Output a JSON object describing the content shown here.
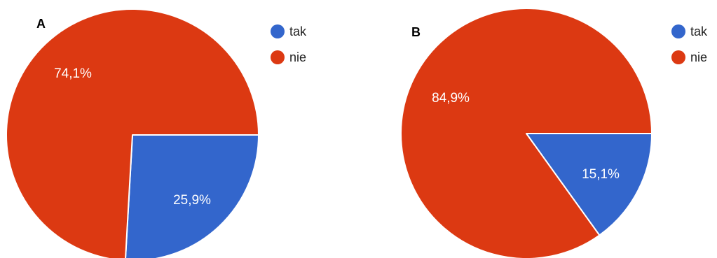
{
  "chart_data": [
    {
      "type": "pie",
      "panel": "A",
      "slices": [
        {
          "label": "tak",
          "value": 25.9,
          "value_label": "25,9%",
          "color": "#3366cc"
        },
        {
          "label": "nie",
          "value": 74.1,
          "value_label": "74,1%",
          "color": "#dc3912"
        }
      ],
      "legend": [
        {
          "label": "tak",
          "color": "#3366cc"
        },
        {
          "label": "nie",
          "color": "#dc3912"
        }
      ],
      "legend_position": "right",
      "start_angle": "3 o'clock",
      "direction": "clockwise"
    },
    {
      "type": "pie",
      "panel": "B",
      "slices": [
        {
          "label": "tak",
          "value": 15.1,
          "value_label": "15,1%",
          "color": "#3366cc"
        },
        {
          "label": "nie",
          "value": 84.9,
          "value_label": "84,9%",
          "color": "#dc3912"
        }
      ],
      "legend": [
        {
          "label": "tak",
          "color": "#3366cc"
        },
        {
          "label": "nie",
          "color": "#dc3912"
        }
      ],
      "legend_position": "right",
      "start_angle": "3 o'clock",
      "direction": "clockwise"
    }
  ]
}
